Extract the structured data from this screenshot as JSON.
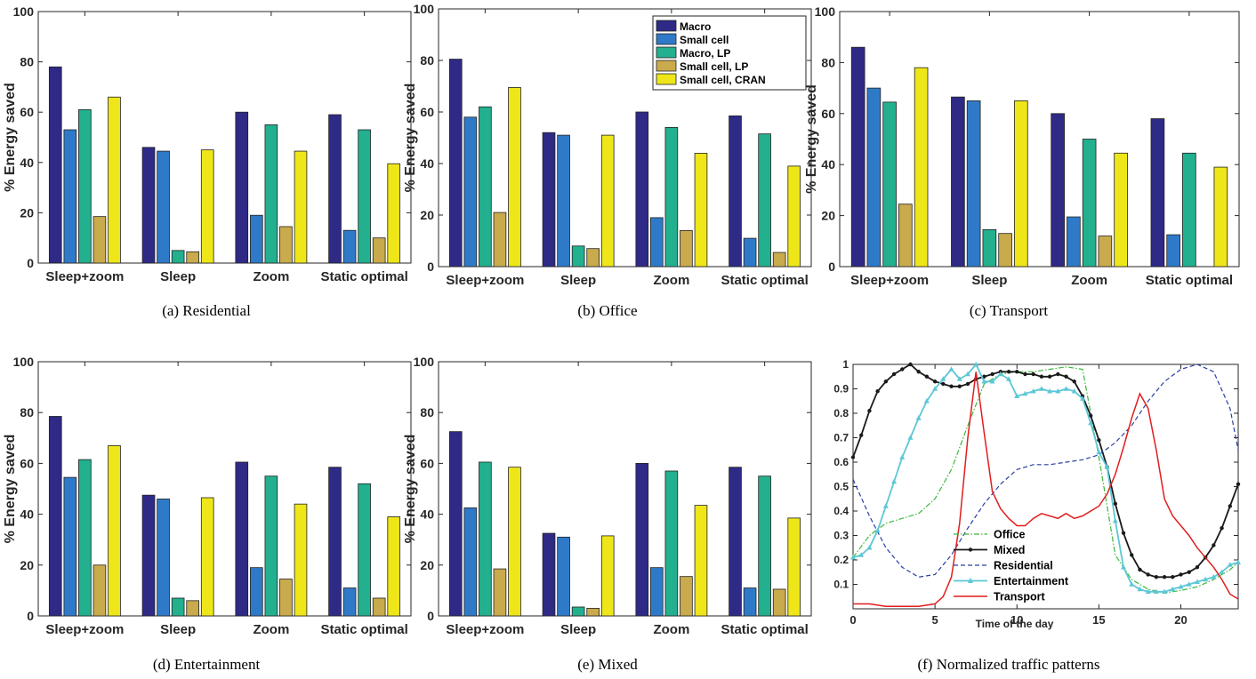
{
  "series_names": [
    "Macro",
    "Small cell",
    "Macro, LP",
    "Small cell, LP",
    "Small cell, CRAN"
  ],
  "series_colors": [
    "#2e2a86",
    "#2f7ac8",
    "#22b08e",
    "#c9aa4c",
    "#eee619"
  ],
  "line_colors": {
    "Office": "#3fb73f",
    "Mixed": "#1a1a1a",
    "Residential": "#2a3fa0",
    "Entertainment": "#5cc7d6",
    "Transport": "#e11e1e"
  },
  "captions": [
    "(a)  Residential",
    "(b)  Office",
    "(c)  Transport",
    "(d)  Entertainment",
    "(e)  Mixed",
    "(f)  Normalized traffic patterns"
  ],
  "chart_data": [
    {
      "type": "bar",
      "ylabel": "% Energy saved",
      "ylim": [
        0,
        100
      ],
      "yticks": [
        "0",
        "20",
        "40",
        "60",
        "80",
        "100"
      ],
      "categories": [
        "Sleep+zoom",
        "Sleep",
        "Zoom",
        "Static optimal"
      ],
      "series": [
        {
          "name": "Macro",
          "values": [
            78,
            46,
            60,
            59
          ]
        },
        {
          "name": "Small cell",
          "values": [
            53,
            44.5,
            19,
            13
          ]
        },
        {
          "name": "Macro, LP",
          "values": [
            61,
            5,
            55,
            53
          ]
        },
        {
          "name": "Small cell, LP",
          "values": [
            18.5,
            4.5,
            14.5,
            10
          ]
        },
        {
          "name": "Small cell, CRAN",
          "values": [
            66,
            45,
            44.5,
            39.5
          ]
        }
      ]
    },
    {
      "type": "bar",
      "ylabel": "% Energy saved",
      "ylim": [
        0,
        100
      ],
      "yticks": [
        "0",
        "20",
        "40",
        "60",
        "80",
        "100"
      ],
      "categories": [
        "Sleep+zoom",
        "Sleep",
        "Zoom",
        "Static optimal"
      ],
      "series": [
        {
          "name": "Macro",
          "values": [
            80.5,
            52,
            60,
            58.5
          ]
        },
        {
          "name": "Small cell",
          "values": [
            58,
            51,
            19,
            11
          ]
        },
        {
          "name": "Macro, LP",
          "values": [
            62,
            8,
            54,
            51.5
          ]
        },
        {
          "name": "Small cell, LP",
          "values": [
            21,
            7,
            14,
            5.5
          ]
        },
        {
          "name": "Small cell, CRAN",
          "values": [
            69.5,
            51,
            44,
            39
          ]
        }
      ]
    },
    {
      "type": "bar",
      "ylabel": "% Energy saved",
      "ylim": [
        0,
        100
      ],
      "yticks": [
        "0",
        "20",
        "40",
        "60",
        "80",
        "100"
      ],
      "categories": [
        "Sleep+zoom",
        "Sleep",
        "Zoom",
        "Static optimal"
      ],
      "series": [
        {
          "name": "Macro",
          "values": [
            86,
            66.5,
            60,
            58
          ]
        },
        {
          "name": "Small cell",
          "values": [
            70,
            65,
            19.5,
            12.5
          ]
        },
        {
          "name": "Macro, LP",
          "values": [
            64.5,
            14.5,
            50,
            44.5
          ]
        },
        {
          "name": "Small cell, LP",
          "values": [
            24.5,
            13,
            12,
            0
          ]
        },
        {
          "name": "Small cell, CRAN",
          "values": [
            78,
            65,
            44.5,
            39
          ]
        }
      ]
    },
    {
      "type": "bar",
      "ylabel": "% Energy saved",
      "ylim": [
        0,
        100
      ],
      "yticks": [
        "0",
        "20",
        "40",
        "60",
        "80",
        "100"
      ],
      "categories": [
        "Sleep+zoom",
        "Sleep",
        "Zoom",
        "Static optimal"
      ],
      "series": [
        {
          "name": "Macro",
          "values": [
            78.5,
            47.5,
            60.5,
            58.5
          ]
        },
        {
          "name": "Small cell",
          "values": [
            54.5,
            46,
            19,
            11
          ]
        },
        {
          "name": "Macro, LP",
          "values": [
            61.5,
            7,
            55,
            52
          ]
        },
        {
          "name": "Small cell, LP",
          "values": [
            20,
            6,
            14.5,
            7
          ]
        },
        {
          "name": "Small cell, CRAN",
          "values": [
            67,
            46.5,
            44,
            39
          ]
        }
      ]
    },
    {
      "type": "bar",
      "ylabel": "% Energy saved",
      "ylim": [
        0,
        100
      ],
      "yticks": [
        "0",
        "20",
        "40",
        "60",
        "80",
        "100"
      ],
      "categories": [
        "Sleep+zoom",
        "Sleep",
        "Zoom",
        "Static optimal"
      ],
      "series": [
        {
          "name": "Macro",
          "values": [
            72.5,
            32.5,
            60,
            58.5
          ]
        },
        {
          "name": "Small cell",
          "values": [
            42.5,
            31,
            19,
            11
          ]
        },
        {
          "name": "Macro, LP",
          "values": [
            60.5,
            3.5,
            57,
            55
          ]
        },
        {
          "name": "Small cell, LP",
          "values": [
            18.5,
            3,
            15.5,
            10.5
          ]
        },
        {
          "name": "Small cell, CRAN",
          "values": [
            58.5,
            31.5,
            43.5,
            38.5
          ]
        }
      ]
    },
    {
      "type": "line",
      "xlabel": "Time of the day",
      "xlim": [
        0,
        23.5
      ],
      "ylim": [
        0,
        1
      ],
      "xticks": [
        "0",
        "5",
        "10",
        "15",
        "20"
      ],
      "yticks": [
        "0.1",
        "0.2",
        "0.3",
        "0.4",
        "0.5",
        "0.6",
        "0.7",
        "0.8",
        "0.9",
        "1"
      ],
      "series": [
        {
          "name": "Office",
          "x": [
            0,
            1,
            2,
            3,
            4,
            5,
            6,
            7,
            8,
            9,
            10,
            11,
            12,
            13,
            14,
            15,
            16,
            17,
            18,
            19,
            20,
            21,
            22,
            23,
            23.5
          ],
          "values": [
            0.21,
            0.3,
            0.35,
            0.37,
            0.39,
            0.45,
            0.57,
            0.75,
            0.92,
            0.96,
            0.97,
            0.97,
            0.98,
            0.99,
            0.98,
            0.62,
            0.22,
            0.12,
            0.08,
            0.065,
            0.075,
            0.09,
            0.12,
            0.16,
            0.19
          ]
        },
        {
          "name": "Mixed",
          "x": [
            0,
            0.5,
            1,
            1.5,
            2,
            2.5,
            3,
            3.5,
            4,
            4.5,
            5,
            5.5,
            6,
            6.5,
            7,
            7.5,
            8,
            8.5,
            9,
            9.5,
            10,
            10.5,
            11,
            11.5,
            12,
            12.5,
            13,
            13.5,
            14,
            14.5,
            15,
            15.5,
            16,
            16.5,
            17,
            17.5,
            18,
            18.5,
            19,
            19.5,
            20,
            20.5,
            21,
            21.5,
            22,
            22.5,
            23,
            23.5
          ],
          "values": [
            0.62,
            0.71,
            0.81,
            0.89,
            0.93,
            0.96,
            0.98,
            1.0,
            0.97,
            0.95,
            0.93,
            0.92,
            0.91,
            0.91,
            0.92,
            0.94,
            0.95,
            0.96,
            0.97,
            0.97,
            0.97,
            0.96,
            0.96,
            0.95,
            0.95,
            0.96,
            0.95,
            0.93,
            0.87,
            0.79,
            0.69,
            0.58,
            0.43,
            0.31,
            0.22,
            0.16,
            0.14,
            0.13,
            0.13,
            0.13,
            0.14,
            0.15,
            0.17,
            0.21,
            0.26,
            0.33,
            0.42,
            0.51
          ]
        },
        {
          "name": "Residential",
          "x": [
            0,
            1,
            2,
            3,
            4,
            5,
            6,
            7,
            8,
            9,
            10,
            11,
            12,
            13,
            14,
            15,
            16,
            17,
            18,
            19,
            20,
            21,
            22,
            23,
            23.5
          ],
          "values": [
            0.53,
            0.38,
            0.25,
            0.17,
            0.13,
            0.14,
            0.22,
            0.33,
            0.43,
            0.51,
            0.57,
            0.59,
            0.59,
            0.6,
            0.61,
            0.63,
            0.68,
            0.75,
            0.85,
            0.93,
            0.98,
            1.0,
            0.97,
            0.82,
            0.65
          ]
        },
        {
          "name": "Entertainment",
          "x": [
            0,
            0.5,
            1,
            1.5,
            2,
            2.5,
            3,
            3.5,
            4,
            4.5,
            5,
            5.5,
            6,
            6.5,
            7,
            7.5,
            8,
            8.5,
            9,
            9.5,
            10,
            10.5,
            11,
            11.5,
            12,
            12.5,
            13,
            13.5,
            14,
            14.5,
            15,
            15.5,
            16,
            16.5,
            17,
            17.5,
            18,
            18.5,
            19,
            19.5,
            20,
            20.5,
            21,
            21.5,
            22,
            22.5,
            23,
            23.5
          ],
          "values": [
            0.21,
            0.22,
            0.25,
            0.32,
            0.42,
            0.52,
            0.62,
            0.7,
            0.78,
            0.85,
            0.9,
            0.94,
            0.98,
            0.94,
            0.96,
            1.0,
            0.93,
            0.93,
            0.96,
            0.94,
            0.87,
            0.88,
            0.89,
            0.9,
            0.89,
            0.89,
            0.9,
            0.89,
            0.86,
            0.76,
            0.64,
            0.58,
            0.36,
            0.17,
            0.1,
            0.08,
            0.07,
            0.07,
            0.07,
            0.08,
            0.09,
            0.1,
            0.11,
            0.12,
            0.13,
            0.15,
            0.18,
            0.19
          ]
        },
        {
          "name": "Transport",
          "x": [
            0,
            1,
            2,
            3,
            4,
            5,
            5.5,
            6,
            6.5,
            7,
            7.5,
            8,
            8.5,
            9,
            9.5,
            10,
            10.5,
            11,
            11.5,
            12,
            12.5,
            13,
            13.5,
            14,
            14.5,
            15,
            15.5,
            16,
            16.5,
            17,
            17.5,
            18,
            18.5,
            19,
            19.5,
            20,
            20.5,
            21,
            21.5,
            22,
            22.5,
            23,
            23.5
          ],
          "values": [
            0.02,
            0.02,
            0.01,
            0.01,
            0.01,
            0.02,
            0.05,
            0.13,
            0.35,
            0.7,
            0.97,
            0.72,
            0.48,
            0.41,
            0.37,
            0.34,
            0.34,
            0.37,
            0.39,
            0.38,
            0.37,
            0.39,
            0.37,
            0.38,
            0.4,
            0.42,
            0.47,
            0.55,
            0.66,
            0.78,
            0.88,
            0.82,
            0.65,
            0.45,
            0.38,
            0.34,
            0.3,
            0.25,
            0.21,
            0.17,
            0.12,
            0.06,
            0.04
          ]
        }
      ]
    }
  ]
}
